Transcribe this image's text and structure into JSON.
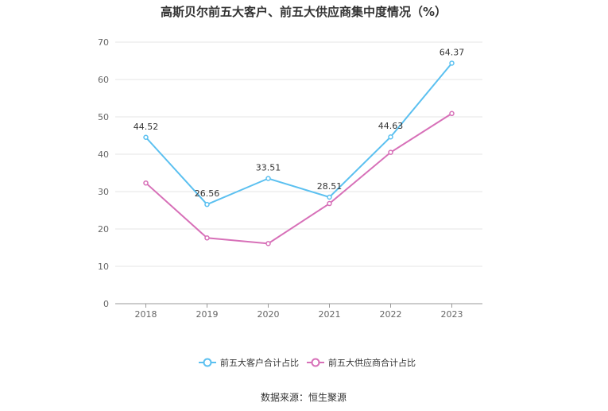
{
  "chart_data": {
    "type": "line",
    "title": "高斯贝尔前五大客户、前五大供应商集中度情况（%）",
    "categories": [
      "2018",
      "2019",
      "2020",
      "2021",
      "2022",
      "2023"
    ],
    "ylim": [
      0,
      70
    ],
    "yticks": [
      "0",
      "10",
      "20",
      "30",
      "40",
      "50",
      "60",
      "70"
    ],
    "grid": true,
    "legend_position": "bottom",
    "series": [
      {
        "name": "前五大客户合计占比",
        "color": "#5bc0f0",
        "values": [
          44.52,
          26.56,
          33.51,
          28.51,
          44.63,
          64.37
        ],
        "labels": [
          "44.52",
          "26.56",
          "33.51",
          "28.51",
          "44.63",
          "64.37"
        ]
      },
      {
        "name": "前五大供应商合计占比",
        "color": "#d770b8",
        "values": [
          32.3,
          17.6,
          16.1,
          26.8,
          40.5,
          50.9
        ]
      }
    ],
    "source": "数据来源：恒生聚源"
  }
}
